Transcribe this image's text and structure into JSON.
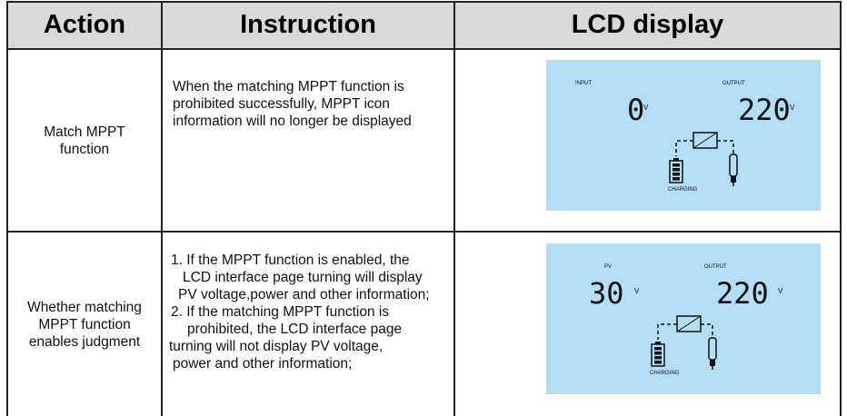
{
  "header": {
    "columns": [
      "Action",
      "Instruction",
      "LCD display"
    ]
  },
  "rows": [
    {
      "action": [
        "Match MPPT",
        "function"
      ],
      "instruction": [
        "When the matching MPPT function is",
        "prohibited successfully, MPPT icon",
        "information will no longer be displayed"
      ],
      "lcd": {
        "left_label": "INPUT",
        "left_value": "0",
        "left_unit": "V",
        "right_label": "OUTPUT",
        "right_value": "220",
        "right_unit": "V",
        "battery_label": "CHARGING"
      }
    },
    {
      "action": [
        "Whether matching",
        "MPPT function",
        "enables judgment"
      ],
      "instruction": [
        "1. If the MPPT function is enabled, the",
        "LCD interface page turning will display",
        "PV voltage,power and other information;",
        "2. If the matching MPPT function is",
        "prohibited, the LCD interface page",
        "turning will not display PV voltage,",
        "power and other information;"
      ],
      "lcd": {
        "left_label": "PV",
        "left_value": "30",
        "left_unit": "V",
        "right_label": "OUTPUT",
        "right_value": "220",
        "right_unit": "V",
        "battery_label": "CHARGING"
      }
    }
  ]
}
